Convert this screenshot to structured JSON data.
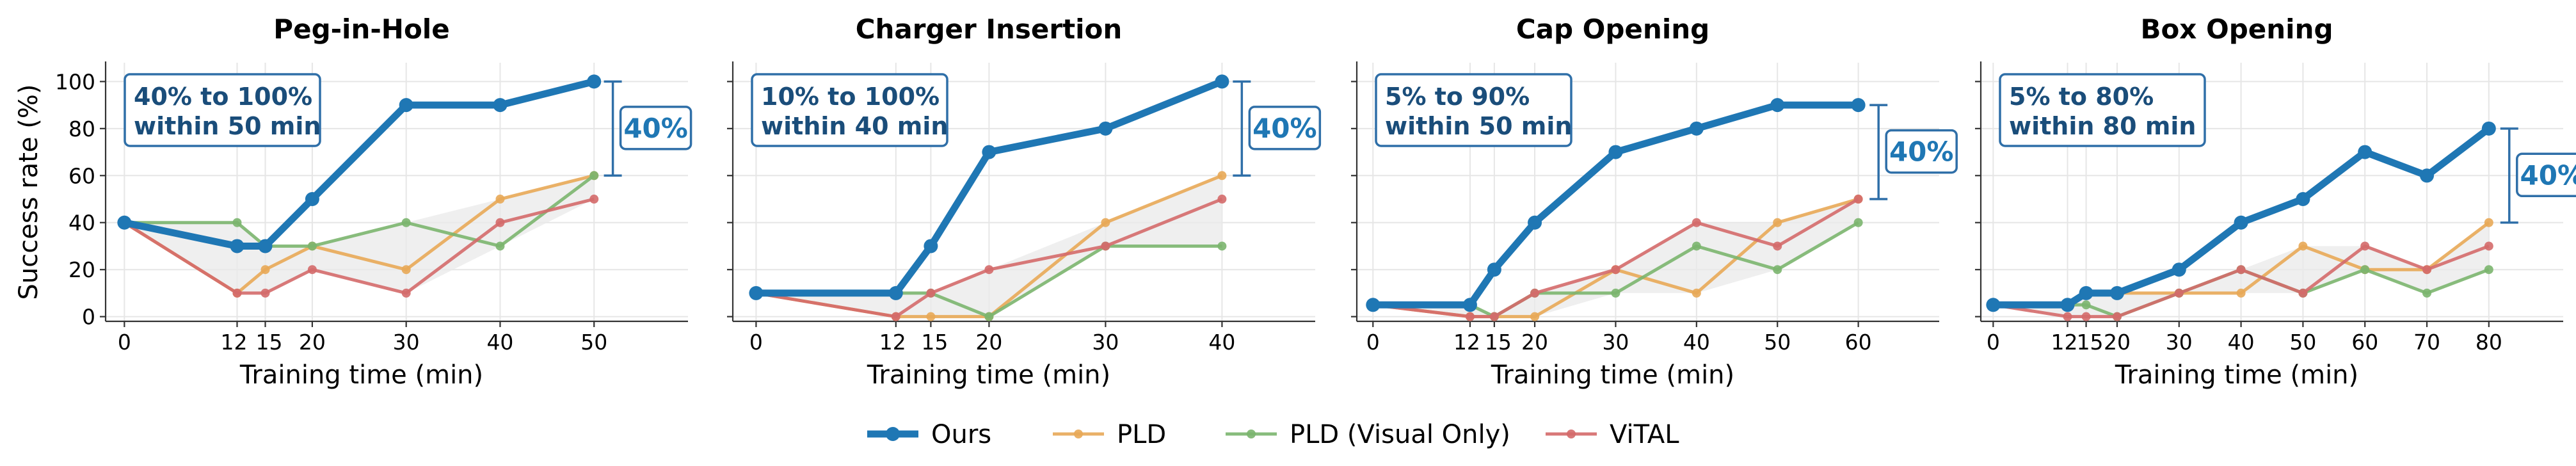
{
  "chart_data": [
    {
      "type": "line",
      "title": "Peg-in-Hole",
      "xlabel": "Training time (min)",
      "ylabel": "Success rate (%)",
      "xlim": [
        -2,
        60
      ],
      "ylim": [
        -2,
        108
      ],
      "xticks": [
        0,
        12,
        15,
        20,
        30,
        40,
        50
      ],
      "yticks": [
        0,
        20,
        40,
        60,
        80,
        100
      ],
      "annotation": "40% to 100%\nwithin 50 min",
      "gap_label": "40%",
      "gap_range": [
        60,
        100
      ],
      "gap_x": 52,
      "series": [
        {
          "name": "Ours",
          "x": [
            0,
            12,
            15,
            20,
            30,
            40,
            50
          ],
          "y": [
            40,
            30,
            30,
            50,
            90,
            90,
            100
          ]
        },
        {
          "name": "PLD",
          "x": [
            0,
            12,
            15,
            20,
            30,
            40,
            50
          ],
          "y": [
            40,
            10,
            20,
            30,
            20,
            50,
            60
          ]
        },
        {
          "name": "PLD (Visual Only)",
          "x": [
            0,
            12,
            15,
            20,
            30,
            40,
            50
          ],
          "y": [
            40,
            40,
            30,
            30,
            40,
            30,
            60
          ]
        },
        {
          "name": "ViTAL",
          "x": [
            0,
            12,
            15,
            20,
            30,
            40,
            50
          ],
          "y": [
            40,
            10,
            10,
            20,
            10,
            40,
            50
          ]
        }
      ]
    },
    {
      "type": "line",
      "title": "Charger Insertion",
      "xlabel": "Training time (min)",
      "ylabel": "",
      "xlim": [
        -2,
        48
      ],
      "ylim": [
        -2,
        108
      ],
      "xticks": [
        0,
        12,
        15,
        20,
        30,
        40
      ],
      "yticks": [
        0,
        20,
        40,
        60,
        80,
        100
      ],
      "annotation": "10% to 100%\nwithin 40 min",
      "gap_label": "40%",
      "gap_range": [
        60,
        100
      ],
      "gap_x": 41.7,
      "series": [
        {
          "name": "Ours",
          "x": [
            0,
            12,
            15,
            20,
            30,
            40
          ],
          "y": [
            10,
            10,
            30,
            70,
            80,
            100
          ]
        },
        {
          "name": "PLD",
          "x": [
            0,
            12,
            15,
            20,
            30,
            40
          ],
          "y": [
            10,
            0,
            0,
            0,
            40,
            60
          ]
        },
        {
          "name": "PLD (Visual Only)",
          "x": [
            0,
            12,
            15,
            20,
            30,
            40
          ],
          "y": [
            10,
            10,
            10,
            0,
            30,
            30
          ]
        },
        {
          "name": "ViTAL",
          "x": [
            0,
            12,
            15,
            20,
            30,
            40
          ],
          "y": [
            10,
            0,
            10,
            20,
            30,
            50
          ]
        }
      ]
    },
    {
      "type": "line",
      "title": "Cap Opening",
      "xlabel": "Training time (min)",
      "ylabel": "",
      "xlim": [
        -2,
        70
      ],
      "ylim": [
        -2,
        108
      ],
      "xticks": [
        0,
        12,
        15,
        20,
        30,
        40,
        50,
        60
      ],
      "yticks": [
        0,
        20,
        40,
        60,
        80,
        100
      ],
      "annotation": "5% to 90%\nwithin 50 min",
      "gap_label": "40%",
      "gap_range": [
        50,
        90
      ],
      "gap_x": 62.5,
      "series": [
        {
          "name": "Ours",
          "x": [
            0,
            12,
            15,
            20,
            30,
            40,
            50,
            60
          ],
          "y": [
            5,
            5,
            20,
            40,
            70,
            80,
            90,
            90
          ]
        },
        {
          "name": "PLD",
          "x": [
            0,
            12,
            15,
            20,
            30,
            40,
            50,
            60
          ],
          "y": [
            5,
            0,
            0,
            0,
            20,
            10,
            40,
            50
          ]
        },
        {
          "name": "PLD (Visual Only)",
          "x": [
            0,
            12,
            15,
            20,
            30,
            40,
            50,
            60
          ],
          "y": [
            5,
            5,
            0,
            10,
            10,
            30,
            20,
            40
          ]
        },
        {
          "name": "ViTAL",
          "x": [
            0,
            12,
            15,
            20,
            30,
            40,
            50,
            60
          ],
          "y": [
            5,
            0,
            0,
            10,
            20,
            40,
            30,
            50
          ]
        }
      ]
    },
    {
      "type": "line",
      "title": "Box Opening",
      "xlabel": "Training time (min)",
      "ylabel": "",
      "xlim": [
        -2,
        92
      ],
      "ylim": [
        -2,
        108
      ],
      "xticks": [
        0,
        12,
        15,
        20,
        30,
        40,
        50,
        60,
        70,
        80
      ],
      "yticks": [
        0,
        20,
        40,
        60,
        80,
        100
      ],
      "annotation": "5% to 80%\nwithin 80 min",
      "gap_label": "40%",
      "gap_range": [
        40,
        80
      ],
      "gap_x": 83.3,
      "series": [
        {
          "name": "Ours",
          "x": [
            0,
            12,
            15,
            20,
            30,
            40,
            50,
            60,
            70,
            80
          ],
          "y": [
            5,
            5,
            10,
            10,
            20,
            40,
            50,
            70,
            60,
            80
          ]
        },
        {
          "name": "PLD",
          "x": [
            0,
            12,
            15,
            20,
            30,
            40,
            50,
            60,
            70,
            80
          ],
          "y": [
            5,
            5,
            10,
            10,
            10,
            10,
            30,
            20,
            20,
            40
          ]
        },
        {
          "name": "PLD (Visual Only)",
          "x": [
            0,
            12,
            15,
            20,
            30,
            40,
            50,
            60,
            70,
            80
          ],
          "y": [
            5,
            5,
            5,
            0,
            10,
            20,
            10,
            20,
            10,
            20
          ]
        },
        {
          "name": "ViTAL",
          "x": [
            0,
            12,
            15,
            20,
            30,
            40,
            50,
            60,
            70,
            80
          ],
          "y": [
            5,
            0,
            0,
            0,
            10,
            20,
            10,
            30,
            20,
            30
          ]
        }
      ]
    }
  ],
  "legend": {
    "placement": "bottom-center",
    "items": [
      {
        "name": "Ours",
        "color": "#1f77b4"
      },
      {
        "name": "PLD",
        "color": "#e8a857"
      },
      {
        "name": "PLD (Visual Only)",
        "color": "#7bb56e"
      },
      {
        "name": "ViTAL",
        "color": "#d46a6a"
      }
    ]
  },
  "colors": {
    "ours": "#1f77b4",
    "pld": "#e8a857",
    "pld_visual": "#7bb56e",
    "vital": "#d46a6a",
    "annotation_text": "#1a4d7a",
    "annotation_border": "#2f6fa8",
    "band_fill": "#e9e9e9"
  }
}
